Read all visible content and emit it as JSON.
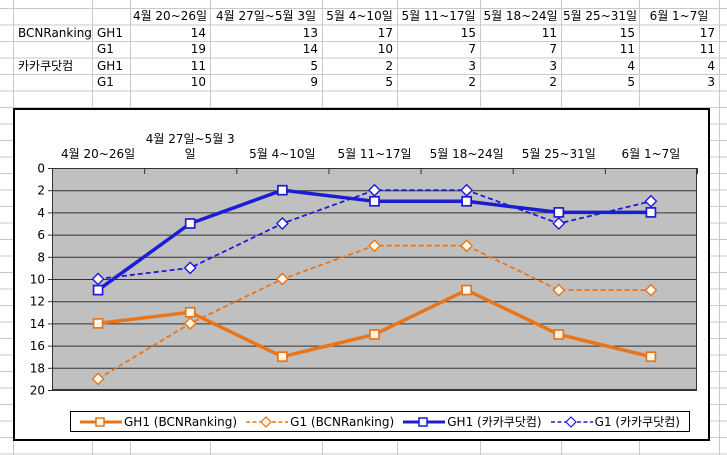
{
  "table": {
    "col_headers": [
      "4월 20~26일",
      "4월 27일~5월 3일",
      "5월 4~10일",
      "5월 11~17일",
      "5월 18~24일",
      "5월 25~31일",
      "6월 1~7일"
    ],
    "rows": [
      {
        "group": "BCNRanking",
        "series": "GH1",
        "values": [
          14,
          13,
          17,
          15,
          11,
          15,
          17
        ]
      },
      {
        "group": "",
        "series": "G1",
        "values": [
          19,
          14,
          10,
          7,
          7,
          11,
          11
        ]
      },
      {
        "group": "카카쿠닷컴",
        "series": "GH1",
        "values": [
          11,
          5,
          2,
          3,
          3,
          4,
          4
        ]
      },
      {
        "group": "",
        "series": "G1",
        "values": [
          10,
          9,
          5,
          2,
          2,
          5,
          3
        ]
      }
    ]
  },
  "chart_data": {
    "type": "line",
    "categories": [
      "4월 20~26일",
      "4월 27일~5월 3\n일",
      "5월 4~10일",
      "5월 11~17일",
      "5월 18~24일",
      "5월 25~31일",
      "6월 1~7일"
    ],
    "series": [
      {
        "name": "GH1 (BCNRanking)",
        "values": [
          14,
          13,
          17,
          15,
          11,
          15,
          17
        ],
        "color": "#e8751a",
        "line_style": "solid",
        "marker": "square",
        "marker_fill": "#fff6e8"
      },
      {
        "name": "G1 (BCNRanking)",
        "values": [
          19,
          14,
          10,
          7,
          7,
          11,
          11
        ],
        "color": "#e8751a",
        "line_style": "dashed",
        "marker": "diamond",
        "marker_fill": "#fff6e8"
      },
      {
        "name": "GH1 (카카쿠닷컴)",
        "values": [
          11,
          5,
          2,
          3,
          3,
          4,
          4
        ],
        "color": "#1c1cd4",
        "line_style": "solid",
        "marker": "square",
        "marker_fill": "#ffffff"
      },
      {
        "name": "G1 (카카쿠닷컴)",
        "values": [
          10,
          9,
          5,
          2,
          2,
          5,
          3
        ],
        "color": "#1c1cd4",
        "line_style": "dashed",
        "marker": "diamond",
        "marker_fill": "#ffffff"
      }
    ],
    "y_axis": {
      "min": 0,
      "max": 20,
      "step": 2,
      "inverted": true,
      "tick_labels": [
        "0",
        "2",
        "4",
        "6",
        "8",
        "10",
        "12",
        "14",
        "16",
        "18",
        "20"
      ]
    },
    "x_axis_position": "top",
    "legend_position": "bottom",
    "grid": true,
    "plot_bg_color": "#c0c0c0",
    "grid_color": "#333333"
  }
}
